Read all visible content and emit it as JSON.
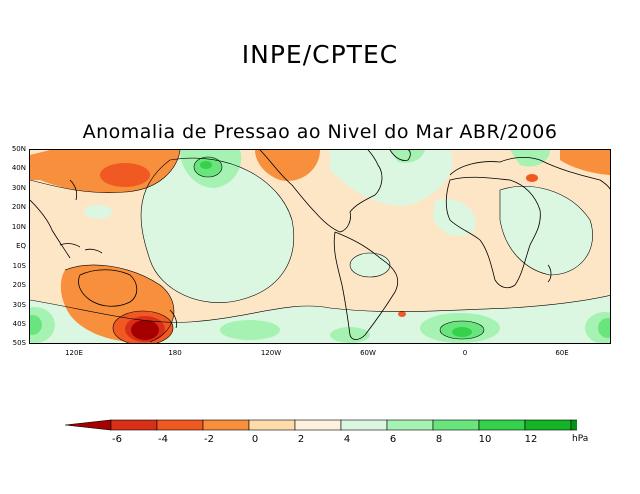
{
  "header": {
    "title": "INPE/CPTEC"
  },
  "map": {
    "title": "Anomalia de Pressao ao Nivel do Mar ABR/2006",
    "lat_labels": [
      "50N",
      "40N",
      "30N",
      "20N",
      "10N",
      "EQ",
      "10S",
      "20S",
      "30S",
      "40S",
      "50S"
    ],
    "lon_labels": [
      "120E",
      "180",
      "120W",
      "60W",
      "0",
      "60E"
    ]
  },
  "legend": {
    "unit": "hPa",
    "labels": [
      "-6",
      "-4",
      "-2",
      "0",
      "2",
      "4",
      "6",
      "8",
      "10",
      "12"
    ],
    "colors": [
      "#a50000",
      "#d83018",
      "#f05a22",
      "#f78f3d",
      "#fddcaa",
      "#fdf0dc",
      "#dcf7e1",
      "#a6f2b2",
      "#6ae57d",
      "#35d14d",
      "#14b426",
      "#049318",
      "#017a12"
    ],
    "arrow_left_color": "#a50000",
    "arrow_right_color": "#017a12"
  }
}
